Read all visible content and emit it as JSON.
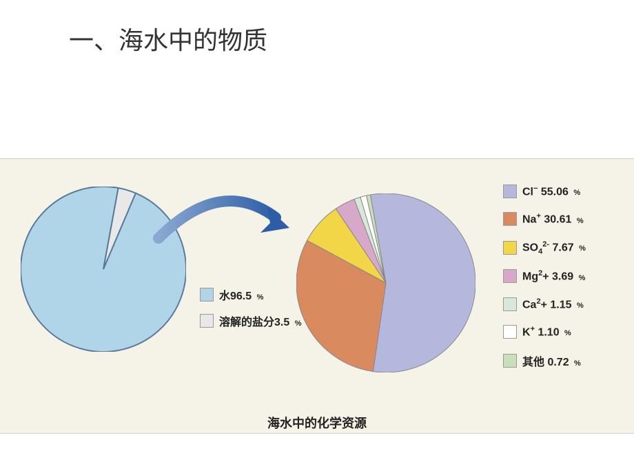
{
  "title": "一、海水中的物质",
  "caption": "海水中的化学资源",
  "background_color": "#ffffff",
  "chart_background": "#f5f3e8",
  "arrow_color": "#2e5da8",
  "pie1": {
    "type": "pie",
    "radius": 120,
    "stroke_color": "#5a7a9a",
    "stroke_width": 2,
    "slices": [
      {
        "label": "水96.5",
        "value": 96.5,
        "color": "#b0d5e8",
        "unit": "%"
      },
      {
        "label": "溶解的盐分3.5",
        "value": 3.5,
        "color": "#e8e8e8",
        "unit": "%"
      }
    ]
  },
  "pie2": {
    "type": "pie",
    "radius": 130,
    "stroke_color": "#888888",
    "stroke_width": 1,
    "slices": [
      {
        "label_html": "Cl<sup>−</sup> 55.06",
        "value": 55.06,
        "color": "#b5b8dd",
        "unit": "%"
      },
      {
        "label_html": "Na<sup>+</sup> 30.61",
        "value": 30.61,
        "color": "#d98a5e",
        "unit": "%"
      },
      {
        "label_html": "SO<sub>4</sub><sup>2-</sup> 7.67",
        "value": 7.67,
        "color": "#f2d648",
        "unit": "%"
      },
      {
        "label_html": "Mg<sup>2</sup>+ 3.69",
        "value": 3.69,
        "color": "#d8a8c8",
        "unit": "%"
      },
      {
        "label_html": "Ca<sup>2</sup>+ 1.15",
        "value": 1.15,
        "color": "#d8e8d8",
        "unit": "%"
      },
      {
        "label_html": "K<sup>+</sup> 1.10",
        "value": 1.1,
        "color": "#ffffff",
        "unit": "%"
      },
      {
        "label_html": "其他 0.72",
        "value": 0.72,
        "color": "#c8e0b8",
        "unit": "%"
      }
    ]
  }
}
